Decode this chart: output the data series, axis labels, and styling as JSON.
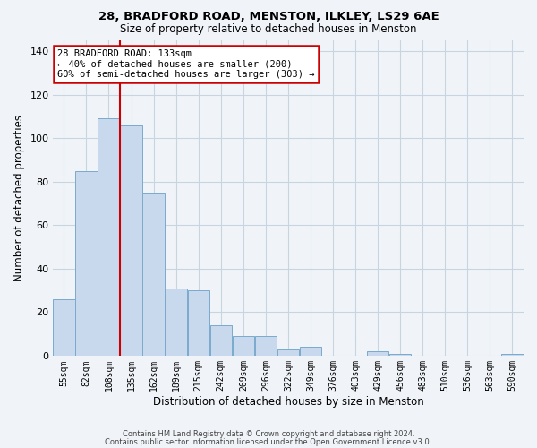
{
  "title1": "28, BRADFORD ROAD, MENSTON, ILKLEY, LS29 6AE",
  "title2": "Size of property relative to detached houses in Menston",
  "xlabel": "Distribution of detached houses by size in Menston",
  "ylabel": "Number of detached properties",
  "bin_labels": [
    "55sqm",
    "82sqm",
    "108sqm",
    "135sqm",
    "162sqm",
    "189sqm",
    "215sqm",
    "242sqm",
    "269sqm",
    "296sqm",
    "322sqm",
    "349sqm",
    "376sqm",
    "403sqm",
    "429sqm",
    "456sqm",
    "483sqm",
    "510sqm",
    "536sqm",
    "563sqm",
    "590sqm"
  ],
  "bar_heights": [
    26,
    85,
    109,
    106,
    75,
    31,
    30,
    14,
    9,
    9,
    3,
    4,
    0,
    0,
    2,
    1,
    0,
    0,
    0,
    0,
    1
  ],
  "bar_color": "#c8d9ee",
  "bar_edge_color": "#7aaacc",
  "vline_color": "#cc0000",
  "vline_bar_index": 3,
  "ylim": [
    0,
    145
  ],
  "yticks": [
    0,
    20,
    40,
    60,
    80,
    100,
    120,
    140
  ],
  "annotation_title": "28 BRADFORD ROAD: 133sqm",
  "annotation_line1": "← 40% of detached houses are smaller (200)",
  "annotation_line2": "60% of semi-detached houses are larger (303) →",
  "annotation_box_color": "#ffffff",
  "annotation_box_edge": "#cc0000",
  "footer1": "Contains HM Land Registry data © Crown copyright and database right 2024.",
  "footer2": "Contains public sector information licensed under the Open Government Licence v3.0.",
  "background_color": "#f0f4f9",
  "grid_color": "#c8d4e0"
}
